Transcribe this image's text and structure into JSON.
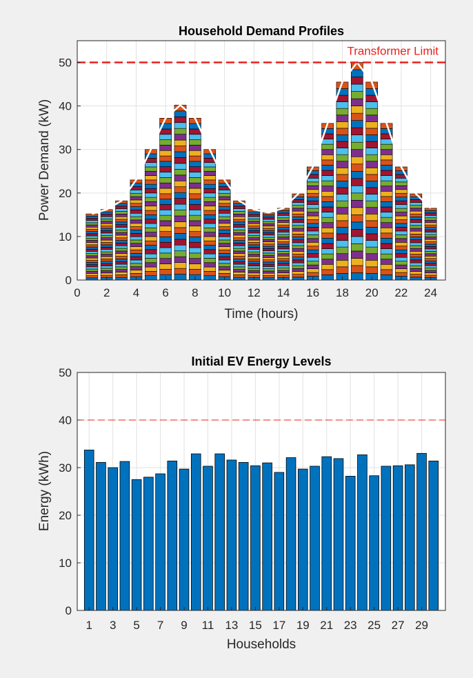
{
  "chart_data": [
    {
      "type": "bar",
      "stacked": true,
      "title": "Household Demand Profiles",
      "xlabel": "Time (hours)",
      "ylabel": "Power Demand (kW)",
      "xlim": [
        0,
        25
      ],
      "ylim": [
        0,
        55
      ],
      "xticks": [
        0,
        2,
        4,
        6,
        8,
        10,
        12,
        14,
        16,
        18,
        20,
        22,
        24
      ],
      "yticks": [
        0,
        10,
        20,
        30,
        40,
        50
      ],
      "grid": true,
      "num_households": 30,
      "categories": [
        1,
        2,
        3,
        4,
        5,
        6,
        7,
        8,
        9,
        10,
        11,
        12,
        13,
        14,
        15,
        16,
        17,
        18,
        19,
        20,
        21,
        22,
        23,
        24
      ],
      "totals": [
        15.2,
        16.2,
        18.2,
        23.0,
        30.0,
        37.2,
        40.2,
        37.2,
        30.0,
        23.0,
        18.2,
        16.2,
        15.5,
        16.5,
        19.8,
        26.0,
        36.0,
        45.5,
        50.0,
        45.5,
        36.0,
        26.0,
        19.8,
        16.5
      ],
      "reference_line": {
        "y": 50,
        "label": "Transformer Limit",
        "color": "#e8201c"
      },
      "series_colors": [
        "#0072bd",
        "#d95319",
        "#edb120",
        "#7e2f8e",
        "#77ac30",
        "#4dbeee",
        "#a2142f"
      ]
    },
    {
      "type": "bar",
      "title": "Initial EV Energy Levels",
      "xlabel": "Households",
      "ylabel": "Energy (kWh)",
      "xlim": [
        0,
        31
      ],
      "ylim": [
        0,
        50
      ],
      "xticks": [
        1,
        3,
        5,
        7,
        9,
        11,
        13,
        15,
        17,
        19,
        21,
        23,
        25,
        27,
        29
      ],
      "yticks": [
        0,
        10,
        20,
        30,
        40,
        50
      ],
      "grid": true,
      "categories": [
        1,
        2,
        3,
        4,
        5,
        6,
        7,
        8,
        9,
        10,
        11,
        12,
        13,
        14,
        15,
        16,
        17,
        18,
        19,
        20,
        21,
        22,
        23,
        24,
        25,
        26,
        27,
        28,
        29,
        30
      ],
      "values": [
        33.7,
        31.1,
        30.0,
        31.3,
        27.5,
        28.0,
        28.7,
        31.4,
        29.7,
        32.9,
        30.3,
        32.9,
        31.6,
        31.1,
        30.4,
        31.0,
        29.0,
        32.1,
        29.7,
        30.3,
        32.3,
        31.9,
        28.2,
        32.7,
        28.3,
        30.3,
        30.4,
        30.6,
        33.0,
        31.4
      ],
      "reference_line": {
        "y": 40,
        "color": "#e8201c"
      },
      "bar_color": "#0072bd"
    }
  ]
}
